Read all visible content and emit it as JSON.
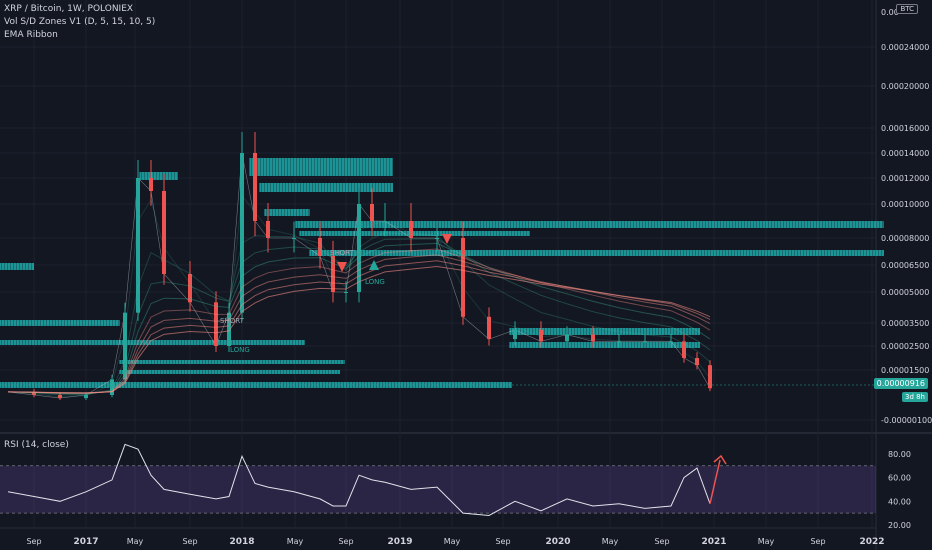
{
  "header": {
    "symbol_line": "XRP / Bitcoin, 1W, POLONIEX",
    "indicator_1": "Vol S/D Zones V1 (D, 5, 15, 10, 5)",
    "indicator_2": "EMA Ribbon",
    "currency_badge": "BTC"
  },
  "price_tag": {
    "value": "0.00000916",
    "countdown": "3d 8h"
  },
  "rsi_legend": "RSI (14, close)",
  "annotations": {
    "short_1": "SHORT",
    "long_1": "LONG",
    "short_2": "SHORT",
    "long_2": "LONG"
  },
  "colors": {
    "background": "#131722",
    "up": "#26a69a",
    "down": "#ef5350",
    "zone": "#22d3d1",
    "rsi_band": "#7e57c2",
    "arrow": "#ef5350",
    "ribbon_low": "#3fbf9f",
    "ribbon_high": "#f28b82"
  },
  "chart_data": [
    {
      "type": "line",
      "title": "XRP / Bitcoin, 1W, POLONIEX",
      "x_tick_labels": [
        "Sep",
        "2017",
        "May",
        "Sep",
        "2018",
        "May",
        "Sep",
        "2019",
        "May",
        "Sep",
        "2020",
        "May",
        "Sep",
        "2021",
        "May",
        "Sep",
        "2022"
      ],
      "y_tick_labels": [
        "0.00024000",
        "0.00020000",
        "0.00016000",
        "0.00014000",
        "0.00012000",
        "0.00010000",
        "0.00008000",
        "0.00006500",
        "0.00005000",
        "0.00003500",
        "0.00002500",
        "0.00001500",
        "-0.00000100"
      ],
      "series": [
        {
          "x": [
            "2016-07",
            "2016-09",
            "2016-11",
            "2017-01",
            "2017-03",
            "2017-04",
            "2017-05",
            "2017-06",
            "2017-07",
            "2017-09",
            "2017-11",
            "2017-12",
            "2018-01",
            "2018-02",
            "2018-03",
            "2018-05",
            "2018-07",
            "2018-08",
            "2018-09",
            "2018-10",
            "2018-11",
            "2018-12",
            "2019-02",
            "2019-04",
            "2019-06",
            "2019-08",
            "2019-10",
            "2019-12",
            "2020-02",
            "2020-04",
            "2020-06",
            "2020-08",
            "2020-10",
            "2020-11",
            "2020-12",
            "2021-01"
          ],
          "y": [
            8e-06,
            7e-06,
            6e-06,
            7e-06,
            1.2e-05,
            4e-05,
            0.00012,
            0.00011,
            6e-05,
            4.5e-05,
            2.5e-05,
            4e-05,
            0.00014,
            9e-05,
            8e-05,
            8e-05,
            7e-05,
            5e-05,
            5e-05,
            0.0001,
            9e-05,
            9e-05,
            8e-05,
            8e-05,
            3.8e-05,
            2.8e-05,
            3.2e-05,
            2.7e-05,
            3e-05,
            2.7e-05,
            2.7e-05,
            2.7e-05,
            2.7e-05,
            2e-05,
            1.7e-05,
            9.16e-06
          ]
        }
      ]
    },
    {
      "type": "line",
      "title": "RSI (14, close)",
      "y_tick_labels": [
        "80.00",
        "60.00",
        "40.00",
        "20.00"
      ],
      "ylim": [
        20,
        90
      ],
      "band": [
        30,
        70
      ],
      "series": [
        {
          "x": [
            "2016-07",
            "2016-09",
            "2016-11",
            "2017-01",
            "2017-03",
            "2017-04",
            "2017-05",
            "2017-06",
            "2017-07",
            "2017-09",
            "2017-11",
            "2017-12",
            "2018-01",
            "2018-02",
            "2018-03",
            "2018-05",
            "2018-07",
            "2018-08",
            "2018-09",
            "2018-10",
            "2018-11",
            "2018-12",
            "2019-02",
            "2019-04",
            "2019-06",
            "2019-08",
            "2019-10",
            "2019-12",
            "2020-02",
            "2020-04",
            "2020-06",
            "2020-08",
            "2020-10",
            "2020-11",
            "2020-12",
            "2021-01"
          ],
          "y": [
            48,
            44,
            40,
            48,
            58,
            88,
            84,
            62,
            50,
            46,
            42,
            44,
            78,
            55,
            52,
            48,
            42,
            36,
            36,
            62,
            58,
            56,
            50,
            52,
            30,
            28,
            40,
            32,
            42,
            36,
            38,
            34,
            36,
            60,
            68,
            38
          ]
        }
      ]
    }
  ]
}
